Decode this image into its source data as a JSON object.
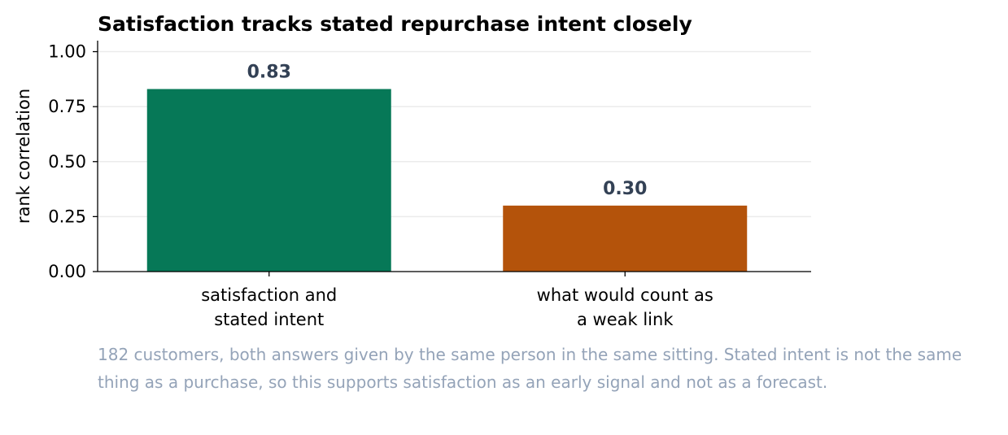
{
  "chart_data": {
    "type": "bar",
    "title": "Satisfaction tracks stated repurchase intent closely",
    "y_label": "rank correlation",
    "categories": [
      "satisfaction and\nstated intent",
      "what would count as\na weak link"
    ],
    "values": [
      0.83,
      0.3
    ],
    "value_labels": [
      "0.83",
      "0.30"
    ],
    "colors": [
      "#067857",
      "#b4530b"
    ],
    "ylim": [
      0,
      1.05
    ],
    "yticks": [
      {
        "value": 0,
        "label": "0.00"
      },
      {
        "value": 0.25,
        "label": "0.25"
      },
      {
        "value": 0.5,
        "label": "0.50"
      },
      {
        "value": 0.75,
        "label": "0.75"
      },
      {
        "value": 1,
        "label": "1.00"
      }
    ],
    "grid": true,
    "note": "182 customers, both answers given by the same person in the same sitting. Stated intent is not the same thing as a purchase, so this supports satisfaction as an early signal and not as a forecast."
  }
}
